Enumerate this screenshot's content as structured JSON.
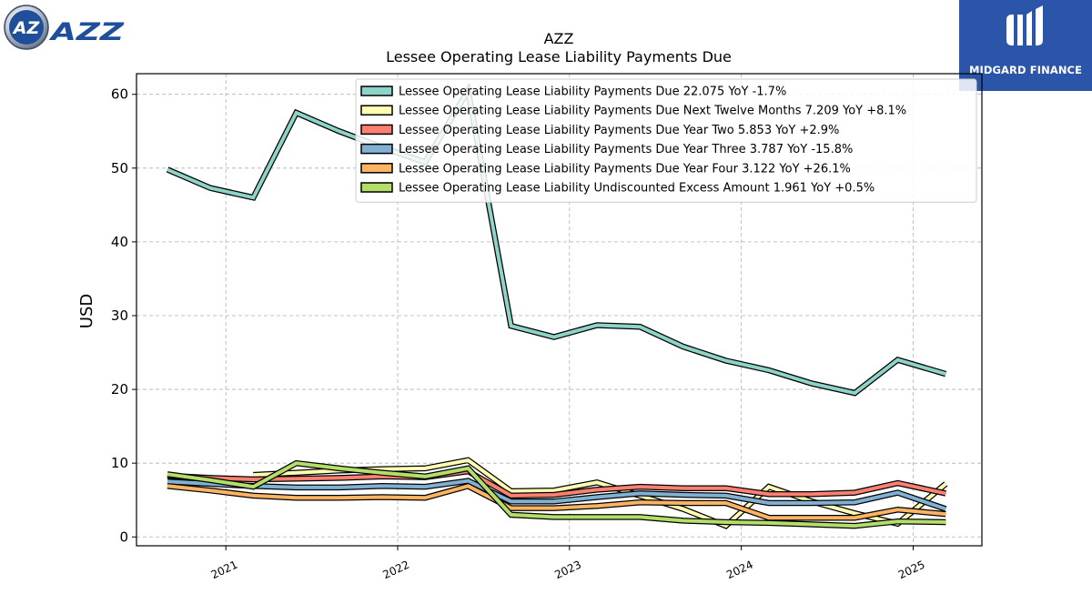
{
  "branding": {
    "left_logo_text": "AZZ",
    "right_logo_text": "MIDGARD FINANCE",
    "right_logo_color": "#2b55a8",
    "left_logo_color": "#1f4e9b"
  },
  "chart_data": {
    "type": "line",
    "title": "AZZ",
    "subtitle": "Lessee Operating Lease Liability Payments Due",
    "xlabel": "",
    "ylabel": "USD",
    "xlim": [
      2020.48,
      2025.4
    ],
    "ylim": [
      -1.2,
      62.8
    ],
    "yticks": [
      0,
      10,
      20,
      30,
      40,
      50,
      60
    ],
    "xticks": [
      {
        "value": 2021.0,
        "label": "2021"
      },
      {
        "value": 2022.0,
        "label": "2022"
      },
      {
        "value": 2023.0,
        "label": "2023"
      },
      {
        "value": 2024.0,
        "label": "2024"
      },
      {
        "value": 2025.0,
        "label": "2025"
      }
    ],
    "grid": true,
    "legend_position": "top-right",
    "series": [
      {
        "name": "Lessee Operating Lease Liability Payments Due",
        "legend": "Lessee Operating Lease Liability Payments Due  22.075 YoY -1.7%",
        "color": "#8dd3c7",
        "x": [
          2020.66,
          2020.91,
          2021.16,
          2021.41,
          2021.66,
          2021.91,
          2022.16,
          2022.41,
          2022.66,
          2022.91,
          2023.16,
          2023.41,
          2023.66,
          2023.91,
          2024.16,
          2024.41,
          2024.66,
          2024.91,
          2025.19
        ],
        "y": [
          49.8,
          47.3,
          46.0,
          57.5,
          55.0,
          52.8,
          50.8,
          60.5,
          28.6,
          27.1,
          28.7,
          28.5,
          25.8,
          23.9,
          22.6,
          20.8,
          19.5,
          24.0,
          22.1
        ]
      },
      {
        "name": "Lessee Operating Lease Liability Payments Due Next Twelve Months",
        "legend": "Lessee Operating Lease Liability Payments Due Next Twelve Months  7.209 YoY +8.1%",
        "color": "#ffffb3",
        "x": [
          2021.16,
          2021.41,
          2021.66,
          2021.91,
          2022.16,
          2022.41,
          2022.66,
          2022.91,
          2023.16,
          2023.41,
          2023.66,
          2023.91,
          2024.16,
          2024.41,
          2024.66,
          2024.91,
          2025.19
        ],
        "y": [
          8.4,
          8.7,
          9.0,
          9.2,
          9.3,
          10.4,
          6.2,
          6.3,
          7.4,
          5.6,
          3.8,
          1.5,
          6.8,
          4.8,
          3.2,
          1.8,
          7.2
        ]
      },
      {
        "name": "Lessee Operating Lease Liability Payments Due Year Two",
        "legend": "Lessee Operating Lease Liability Payments Due Year Two  5.853 YoY +2.9%",
        "color": "#fb8072",
        "x": [
          2020.66,
          2020.91,
          2021.16,
          2021.41,
          2021.66,
          2021.91,
          2022.16,
          2022.41,
          2022.66,
          2022.91,
          2023.16,
          2023.41,
          2023.66,
          2023.91,
          2024.16,
          2024.41,
          2024.66,
          2024.91,
          2025.19
        ],
        "y": [
          8.3,
          8.0,
          7.8,
          7.9,
          8.0,
          8.2,
          8.1,
          8.9,
          5.6,
          5.7,
          6.4,
          6.8,
          6.6,
          6.6,
          5.8,
          5.8,
          6.0,
          7.3,
          5.9
        ]
      },
      {
        "name": "Lessee Operating Lease Liability Payments Due Year Three",
        "legend": "Lessee Operating Lease Liability Payments Due Year Three  3.787 YoY -15.8%",
        "color": "#80b1d3",
        "x": [
          2020.66,
          2020.91,
          2021.16,
          2021.41,
          2021.66,
          2021.91,
          2022.16,
          2022.41,
          2022.66,
          2022.91,
          2023.16,
          2023.41,
          2023.66,
          2023.91,
          2024.16,
          2024.41,
          2024.66,
          2024.91,
          2025.19
        ],
        "y": [
          7.5,
          7.2,
          6.9,
          6.7,
          6.7,
          6.9,
          6.8,
          7.6,
          4.8,
          4.8,
          5.4,
          5.9,
          5.7,
          5.6,
          4.6,
          4.6,
          4.7,
          6.0,
          3.8
        ]
      },
      {
        "name": "Lessee Operating Lease Liability Payments Due Year Four",
        "legend": "Lessee Operating Lease Liability Payments Due Year Four  3.122 YoY +26.1%",
        "color": "#fdb462",
        "x": [
          2020.66,
          2020.91,
          2021.16,
          2021.41,
          2021.66,
          2021.91,
          2022.16,
          2022.41,
          2022.66,
          2022.91,
          2023.16,
          2023.41,
          2023.66,
          2023.91,
          2024.16,
          2024.41,
          2024.66,
          2024.91,
          2025.19
        ],
        "y": [
          6.9,
          6.3,
          5.6,
          5.3,
          5.3,
          5.4,
          5.3,
          6.9,
          3.9,
          3.9,
          4.2,
          4.7,
          4.6,
          4.6,
          2.6,
          2.6,
          2.6,
          3.7,
          3.1
        ]
      },
      {
        "name": "Lessee Operating Lease Liability Undiscounted Excess Amount",
        "legend": "Lessee Operating Lease Liability Undiscounted Excess Amount  1.961 YoY +0.5%",
        "color": "#b3de69",
        "x": [
          2020.66,
          2020.91,
          2021.16,
          2021.41,
          2021.66,
          2021.91,
          2022.16,
          2022.41,
          2022.66,
          2022.91,
          2023.16,
          2023.41,
          2023.66,
          2023.91,
          2024.16,
          2024.41,
          2024.66,
          2024.91,
          2025.19
        ],
        "y": [
          8.5,
          7.7,
          6.8,
          10.0,
          9.3,
          8.7,
          8.2,
          9.3,
          3.0,
          2.7,
          2.7,
          2.7,
          2.2,
          2.0,
          1.9,
          1.7,
          1.5,
          2.1,
          2.0
        ]
      }
    ]
  }
}
